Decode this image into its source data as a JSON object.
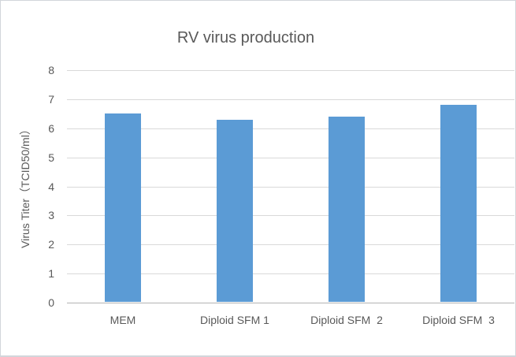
{
  "chart": {
    "title": "RV virus production",
    "y_axis_title": "Virus Titer（TCID50/ml）",
    "colors": {
      "bar": "#5b9bd5",
      "gridline": "#d9d9d9",
      "axis_line": "#b3b3b3",
      "text": "#595959",
      "frame_border": "#d2d6db",
      "background": "#ffffff"
    }
  },
  "chart_data": {
    "type": "bar",
    "title": "RV virus production",
    "categories": [
      "MEM",
      "Diploid SFM 1",
      "Diploid SFM  2",
      "Diploid SFM  3"
    ],
    "values": [
      6.5,
      6.3,
      6.4,
      6.8
    ],
    "xlabel": "",
    "ylabel": "Virus Titer（TCID50/ml）",
    "ylim": [
      0,
      8
    ],
    "yticks": [
      0,
      1,
      2,
      3,
      4,
      5,
      6,
      7,
      8
    ],
    "grid": true,
    "legend": false,
    "bar_color": "#5b9bd5"
  }
}
